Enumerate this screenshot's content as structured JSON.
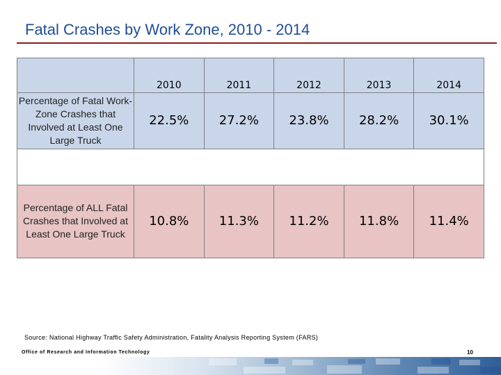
{
  "title": "Fatal Crashes by Work Zone, 2010 - 2014",
  "table": {
    "years": [
      "2010",
      "2011",
      "2012",
      "2013",
      "2014"
    ],
    "rows": [
      {
        "label": "Percentage of Fatal Work-Zone Crashes that Involved at Least One Large Truck",
        "values": [
          "22.5%",
          "27.2%",
          "23.8%",
          "28.2%",
          "30.1%"
        ]
      },
      {
        "label": "Percentage of ALL Fatal Crashes that Involved at Least One Large Truck",
        "values": [
          "10.8%",
          "11.3%",
          "11.2%",
          "11.8%",
          "11.4%"
        ]
      }
    ]
  },
  "source": "Source: National Highway Traffic Safety Administration, Fatality Analysis Reporting System (FARS)",
  "footer": {
    "org": "Office of Research and Information Technology",
    "page": "10"
  },
  "colors": {
    "title": "#1f4e96",
    "rule": "#8b1a1a",
    "blue_cells": "#c9d6ea",
    "red_cells": "#e8c4c4"
  }
}
